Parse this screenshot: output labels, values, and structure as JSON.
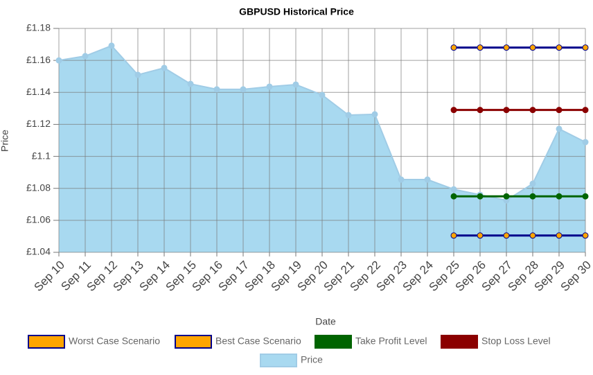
{
  "chart_data": {
    "type": "line",
    "title": "GBPUSD  Historical Price",
    "x_label": "Date",
    "y_label": "Price",
    "categories": [
      "Sep 10",
      "Sep 11",
      "Sep 12",
      "Sep 13",
      "Sep 14",
      "Sep 15",
      "Sep 16",
      "Sep 17",
      "Sep 18",
      "Sep 19",
      "Sep 20",
      "Sep 21",
      "Sep 22",
      "Sep 23",
      "Sep 24",
      "Sep 25",
      "Sep 26",
      "Sep 27",
      "Sep 28",
      "Sep 29",
      "Sep 30"
    ],
    "ylim": [
      1.04,
      1.18
    ],
    "yticks": [
      {
        "value": 1.04,
        "label": "£1.04"
      },
      {
        "value": 1.06,
        "label": "£1.06"
      },
      {
        "value": 1.08,
        "label": "£1.08"
      },
      {
        "value": 1.1,
        "label": "£1.1"
      },
      {
        "value": 1.12,
        "label": "£1.12"
      },
      {
        "value": 1.14,
        "label": "£1.14"
      },
      {
        "value": 1.16,
        "label": "£1.16"
      },
      {
        "value": 1.18,
        "label": "£1.18"
      }
    ],
    "grid": true,
    "series": [
      {
        "name": "Worst Case Scenario",
        "color": "#ffa500",
        "line_color": "#00008b",
        "values": [
          null,
          null,
          null,
          null,
          null,
          null,
          null,
          null,
          null,
          null,
          null,
          null,
          null,
          null,
          null,
          1.0505,
          1.0505,
          1.0505,
          1.0505,
          1.0505,
          1.0505
        ]
      },
      {
        "name": "Best Case Scenario",
        "color": "#ffa500",
        "line_color": "#00008b",
        "values": [
          null,
          null,
          null,
          null,
          null,
          null,
          null,
          null,
          null,
          null,
          null,
          null,
          null,
          null,
          null,
          1.168,
          1.168,
          1.168,
          1.168,
          1.168,
          1.168
        ]
      },
      {
        "name": "Take Profit Level",
        "color": "#006400",
        "line_color": "#006400",
        "values": [
          null,
          null,
          null,
          null,
          null,
          null,
          null,
          null,
          null,
          null,
          null,
          null,
          null,
          null,
          null,
          1.075,
          1.075,
          1.075,
          1.075,
          1.075,
          1.075
        ]
      },
      {
        "name": "Stop Loss Level",
        "color": "#8b0000",
        "line_color": "#8b0000",
        "values": [
          null,
          null,
          null,
          null,
          null,
          null,
          null,
          null,
          null,
          null,
          null,
          null,
          null,
          null,
          null,
          1.129,
          1.129,
          1.129,
          1.129,
          1.129,
          1.129
        ]
      },
      {
        "name": "Price",
        "color": "#a8d9f0",
        "line_color": "#a0cce6",
        "area": true,
        "values": [
          1.16,
          1.1627,
          1.1692,
          1.151,
          1.1553,
          1.1453,
          1.1419,
          1.1419,
          1.1436,
          1.1449,
          1.1384,
          1.1258,
          1.1263,
          1.0855,
          1.0855,
          1.0794,
          1.076,
          1.0725,
          1.0829,
          1.1172,
          1.1089
        ]
      }
    ]
  }
}
